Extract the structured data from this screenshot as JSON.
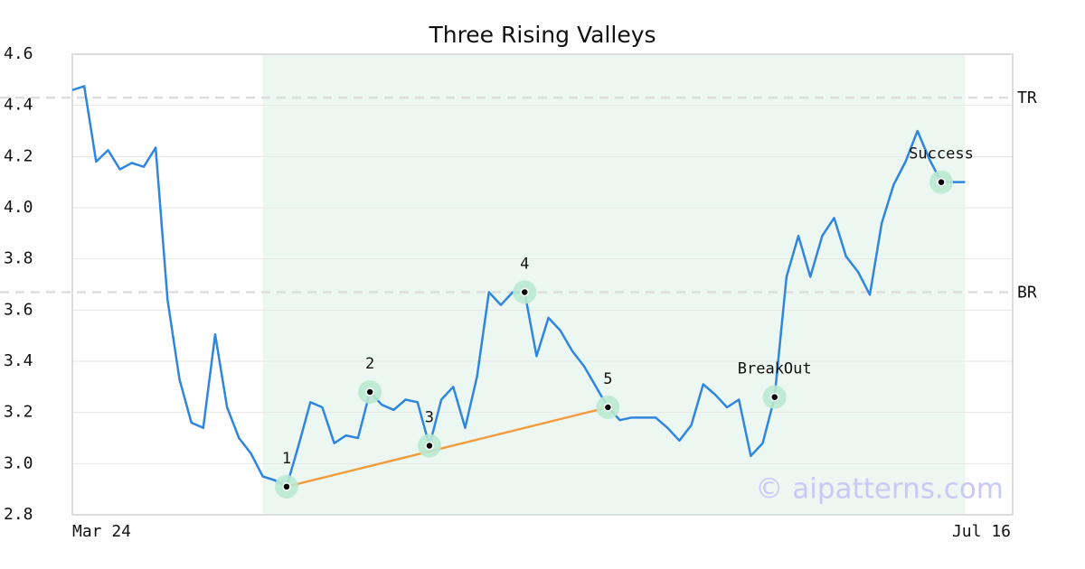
{
  "chart_data": {
    "type": "line",
    "title": "Three Rising Valleys",
    "watermark": "© aipatterns.com",
    "x": [
      0,
      1,
      2,
      3,
      4,
      5,
      6,
      7,
      8,
      9,
      10,
      11,
      12,
      13,
      14,
      15,
      16,
      17,
      18,
      19,
      20,
      21,
      22,
      23,
      24,
      25,
      26,
      27,
      28,
      29,
      30,
      31,
      32,
      33,
      34,
      35,
      36,
      37,
      38,
      39,
      40,
      41,
      42,
      43,
      44,
      45,
      46,
      47,
      48,
      49,
      50,
      51,
      52,
      53,
      54,
      55,
      56,
      57,
      58,
      59,
      60,
      61,
      62,
      63,
      64,
      65,
      66,
      67,
      68,
      69,
      70,
      71,
      72,
      73,
      74,
      75
    ],
    "series": [
      {
        "color": "#2e86de",
        "values": [
          4.46,
          4.475,
          4.18,
          4.225,
          4.15,
          4.175,
          4.16,
          4.235,
          3.64,
          3.33,
          3.16,
          3.14,
          3.505,
          3.22,
          3.1,
          3.04,
          2.95,
          2.935,
          2.91,
          3.07,
          3.24,
          3.22,
          3.08,
          3.11,
          3.1,
          3.28,
          3.23,
          3.21,
          3.25,
          3.24,
          3.07,
          3.25,
          3.3,
          3.14,
          3.34,
          3.67,
          3.62,
          3.67,
          3.67,
          3.42,
          3.57,
          3.52,
          3.44,
          3.38,
          3.3,
          3.22,
          3.17,
          3.18,
          3.18,
          3.18,
          3.14,
          3.09,
          3.15,
          3.31,
          3.27,
          3.22,
          3.25,
          3.03,
          3.08,
          3.26,
          3.73,
          3.89,
          3.73,
          3.89,
          3.96,
          3.81,
          3.75,
          3.66,
          3.94,
          4.09,
          4.18,
          4.3,
          4.19,
          4.1,
          4.1,
          4.1
        ]
      }
    ],
    "xlim": [
      0,
      79
    ],
    "xticks": [
      {
        "value": 0,
        "label": "Mar 24"
      },
      {
        "value": 79,
        "label": "Jul 16"
      }
    ],
    "ylim": [
      2.8,
      4.6
    ],
    "yticks": [
      2.8,
      {
        "value": 3.0,
        "label": "3.0"
      },
      3.2,
      3.4,
      3.6,
      3.8,
      {
        "value": 4.0,
        "label": "4.0"
      },
      4.2,
      4.4,
      4.6
    ],
    "grid": true,
    "shade": [
      16,
      75
    ],
    "shade_color": "#e6f4ed",
    "levels": [
      {
        "name": "TR",
        "value": 4.43
      },
      {
        "name": "BR",
        "value": 3.67
      }
    ],
    "trendline": {
      "color": "#f39c3d",
      "x": [
        18,
        45
      ],
      "values": [
        2.91,
        3.22
      ]
    },
    "annotations": [
      {
        "label": "1",
        "x": 18,
        "value": 2.91
      },
      {
        "label": "2",
        "x": 25,
        "value": 3.28
      },
      {
        "label": "3",
        "x": 30,
        "value": 3.07
      },
      {
        "label": "4",
        "x": 38,
        "value": 3.67
      },
      {
        "label": "5",
        "x": 45,
        "value": 3.22
      },
      {
        "label": "BreakOut",
        "x": 59,
        "value": 3.26
      },
      {
        "label": "Success",
        "x": 73,
        "value": 4.1
      }
    ]
  }
}
